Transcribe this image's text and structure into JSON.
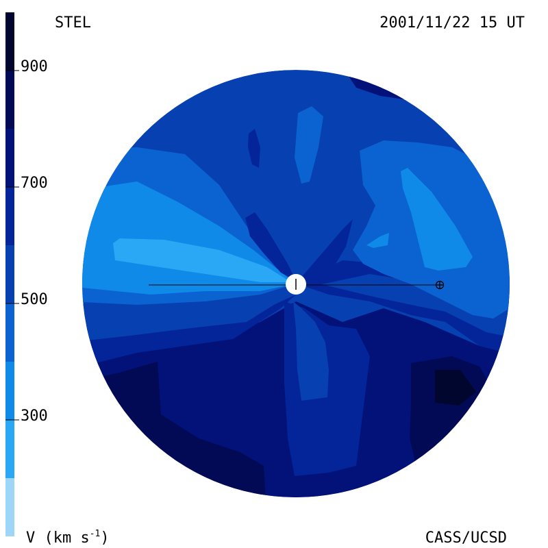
{
  "header": {
    "source": "STEL",
    "timestamp": "2001/11/22 15 UT"
  },
  "footer": {
    "units_label": "V (km s",
    "units_superscript": "-1",
    "units_close": ")",
    "credit": "CASS/UCSD"
  },
  "colorbar": {
    "tick_labels": [
      "900",
      "700",
      "500",
      "300"
    ],
    "bands": [
      {
        "from": 100,
        "to": 200,
        "color": "#9dd6f7"
      },
      {
        "from": 200,
        "to": 300,
        "color": "#2aa7f5"
      },
      {
        "from": 300,
        "to": 400,
        "color": "#0f8ae8"
      },
      {
        "from": 400,
        "to": 500,
        "color": "#0a63d1"
      },
      {
        "from": 500,
        "to": 600,
        "color": "#0740b0"
      },
      {
        "from": 600,
        "to": 700,
        "color": "#04249a"
      },
      {
        "from": 700,
        "to": 800,
        "color": "#021278"
      },
      {
        "from": 800,
        "to": 900,
        "color": "#020a55"
      },
      {
        "from": 900,
        "to": 1000,
        "color": "#01062e"
      }
    ]
  },
  "map": {
    "base_color": "#0740b0",
    "markers": {
      "sun": "sun",
      "earth": "earth"
    }
  }
}
